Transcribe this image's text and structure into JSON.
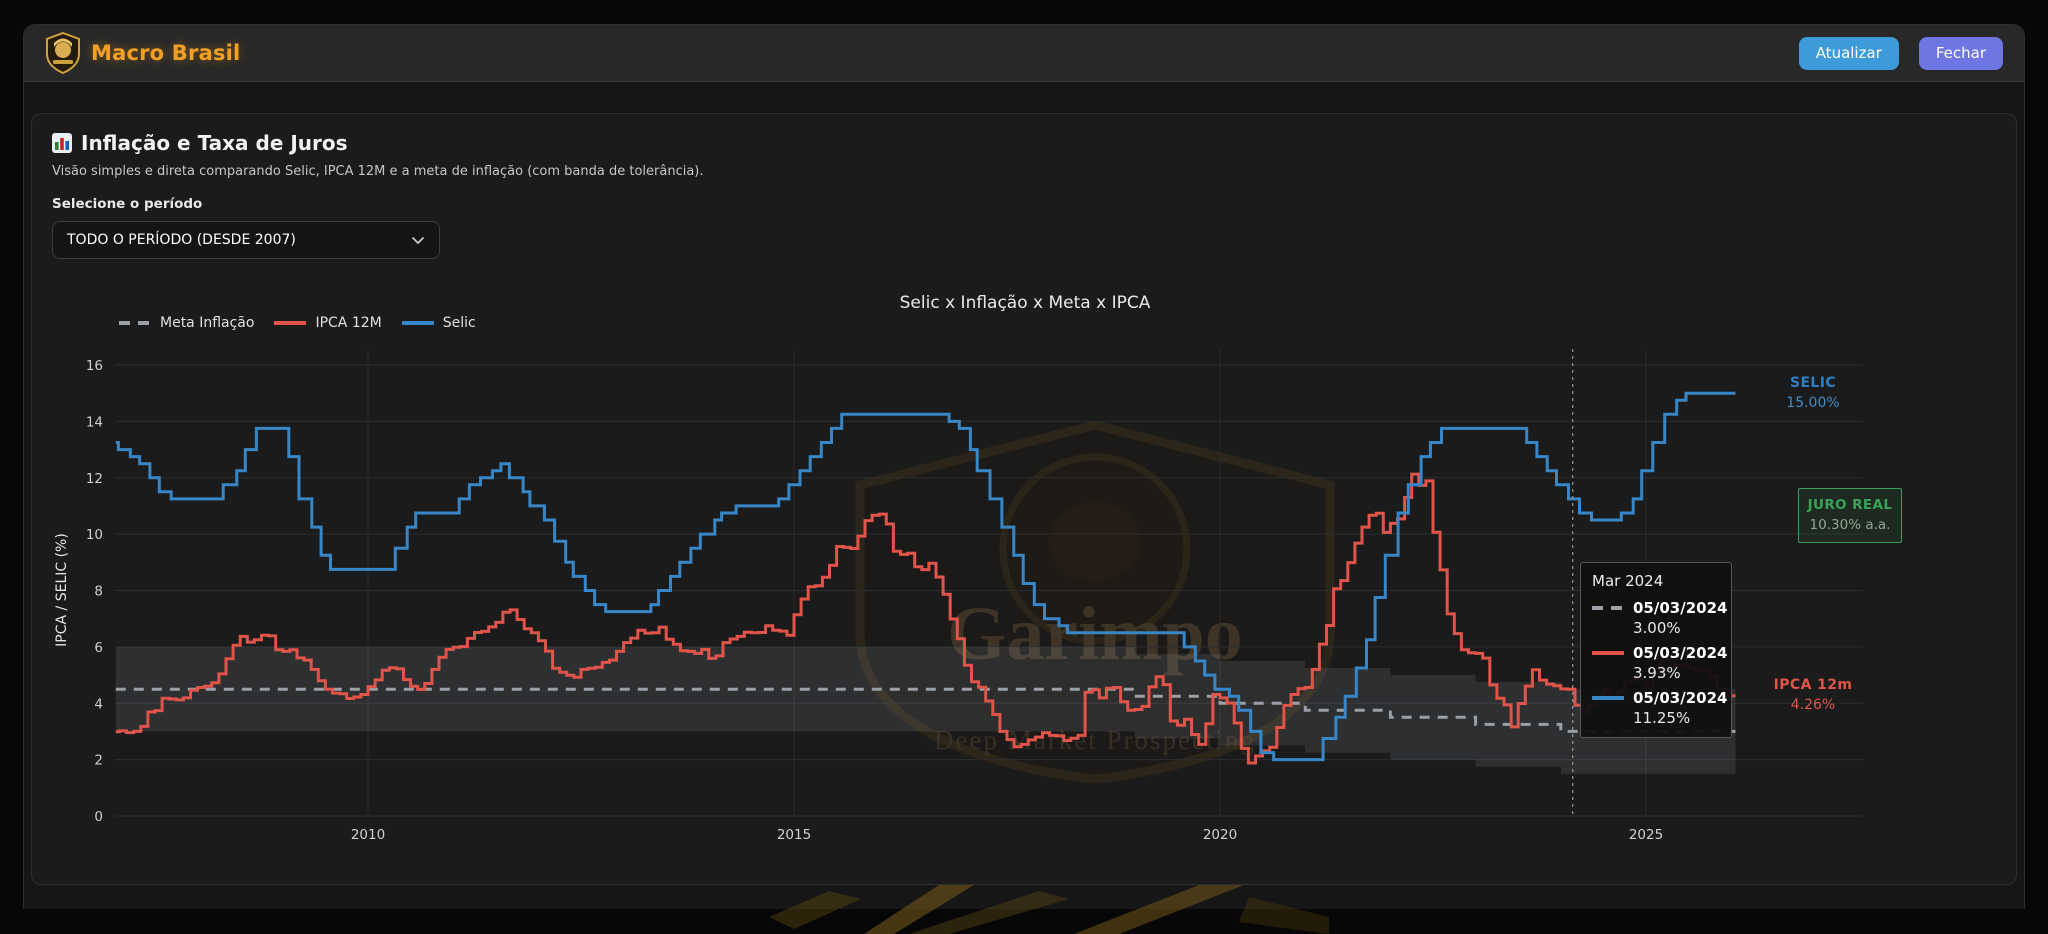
{
  "header": {
    "brand": "Macro Brasil",
    "refresh_label": "Atualizar",
    "close_label": "Fechar",
    "colors": {
      "brand": "#f2a024",
      "refresh_button": "#3d9bd9",
      "close_button": "#6d76e3"
    }
  },
  "card": {
    "title": "Inflação e Taxa de Juros",
    "subtitle": "Visão simples e direta comparando Selic, IPCA 12M e a meta de inflação (com banda de tolerância).",
    "period_label": "Selecione o período",
    "period_value": "TODO O PERÍODO (DESDE 2007)"
  },
  "annotations": {
    "selic": {
      "label": "SELIC",
      "value": "15.00%",
      "color": "#3787c8"
    },
    "juro_real": {
      "label": "JURO REAL",
      "value": "10.30% a.a.",
      "color": "#3fa35c"
    },
    "ipca": {
      "label": "IPCA 12m",
      "value": "4.26%",
      "color": "#e0544a"
    }
  },
  "tooltip": {
    "title": "Mar 2024",
    "rows": [
      {
        "series": "meta",
        "date": "05/03/2024",
        "value": "3.00%"
      },
      {
        "series": "ipca",
        "date": "05/03/2024",
        "value": "3.93%"
      },
      {
        "series": "selic",
        "date": "05/03/2024",
        "value": "11.25%"
      }
    ]
  },
  "watermark": {
    "name": "Garimpo",
    "tagline": "Deep Market Prospecting"
  },
  "chart_data": {
    "type": "line",
    "title": "Selic x Inflação x Meta x IPCA",
    "ylabel": "IPCA / SELIC (%)",
    "y_ticks": [
      0,
      2,
      4,
      6,
      8,
      10,
      12,
      14,
      16
    ],
    "x_ticks": [
      2010,
      2015,
      2020,
      2025
    ],
    "x_range": [
      2007.04,
      2026.05
    ],
    "ylim": [
      0,
      16
    ],
    "grid": true,
    "legend_position": "top-left",
    "crosshair_x": 2024.14,
    "legend": [
      {
        "name": "Meta Inflação",
        "color": "#9aa0a6",
        "style": "dashed"
      },
      {
        "name": "IPCA 12M",
        "color": "#e0544a",
        "style": "solid"
      },
      {
        "name": "Selic",
        "color": "#3787c8",
        "style": "solid"
      }
    ],
    "band_tolerance": 1.5,
    "band_fill": "rgba(190,196,206,0.12)",
    "meta_steps": [
      [
        2007.04,
        4.5
      ],
      [
        2019,
        4.25
      ],
      [
        2020,
        4.0
      ],
      [
        2021,
        3.75
      ],
      [
        2022,
        3.5
      ],
      [
        2023,
        3.25
      ],
      [
        2024,
        3.0
      ],
      [
        2026.05,
        3.0
      ]
    ],
    "selic_steps": [
      [
        2007.04,
        13.25
      ],
      [
        2007.07,
        13.0
      ],
      [
        2007.21,
        12.75
      ],
      [
        2007.32,
        12.5
      ],
      [
        2007.44,
        12.0
      ],
      [
        2007.55,
        11.5
      ],
      [
        2007.69,
        11.25
      ],
      [
        2008.3,
        11.75
      ],
      [
        2008.46,
        12.25
      ],
      [
        2008.56,
        13.0
      ],
      [
        2008.69,
        13.75
      ],
      [
        2009.07,
        12.75
      ],
      [
        2009.19,
        11.25
      ],
      [
        2009.34,
        10.25
      ],
      [
        2009.45,
        9.25
      ],
      [
        2009.56,
        8.75
      ],
      [
        2010.32,
        9.5
      ],
      [
        2010.46,
        10.25
      ],
      [
        2010.56,
        10.75
      ],
      [
        2011.07,
        11.25
      ],
      [
        2011.19,
        11.75
      ],
      [
        2011.32,
        12.0
      ],
      [
        2011.46,
        12.25
      ],
      [
        2011.56,
        12.5
      ],
      [
        2011.66,
        12.0
      ],
      [
        2011.82,
        11.5
      ],
      [
        2011.9,
        11.0
      ],
      [
        2012.07,
        10.5
      ],
      [
        2012.19,
        9.75
      ],
      [
        2012.32,
        9.0
      ],
      [
        2012.41,
        8.5
      ],
      [
        2012.55,
        8.0
      ],
      [
        2012.66,
        7.5
      ],
      [
        2012.79,
        7.25
      ],
      [
        2013.32,
        7.5
      ],
      [
        2013.41,
        8.0
      ],
      [
        2013.55,
        8.5
      ],
      [
        2013.66,
        9.0
      ],
      [
        2013.79,
        9.5
      ],
      [
        2013.9,
        10.0
      ],
      [
        2014.07,
        10.5
      ],
      [
        2014.15,
        10.75
      ],
      [
        2014.32,
        11.0
      ],
      [
        2014.82,
        11.25
      ],
      [
        2014.94,
        11.75
      ],
      [
        2015.07,
        12.25
      ],
      [
        2015.19,
        12.75
      ],
      [
        2015.32,
        13.25
      ],
      [
        2015.44,
        13.75
      ],
      [
        2015.56,
        14.25
      ],
      [
        2016.82,
        14.0
      ],
      [
        2016.94,
        13.75
      ],
      [
        2017.07,
        13.0
      ],
      [
        2017.15,
        12.25
      ],
      [
        2017.3,
        11.25
      ],
      [
        2017.44,
        10.25
      ],
      [
        2017.58,
        9.25
      ],
      [
        2017.69,
        8.25
      ],
      [
        2017.82,
        7.5
      ],
      [
        2017.94,
        7.0
      ],
      [
        2018.11,
        6.75
      ],
      [
        2018.21,
        6.5
      ],
      [
        2019.58,
        6.0
      ],
      [
        2019.71,
        5.5
      ],
      [
        2019.82,
        5.0
      ],
      [
        2019.94,
        4.5
      ],
      [
        2020.11,
        4.25
      ],
      [
        2020.22,
        3.75
      ],
      [
        2020.36,
        3.0
      ],
      [
        2020.48,
        2.25
      ],
      [
        2020.63,
        2.0
      ],
      [
        2021.21,
        2.75
      ],
      [
        2021.36,
        3.5
      ],
      [
        2021.47,
        4.25
      ],
      [
        2021.6,
        5.25
      ],
      [
        2021.72,
        6.25
      ],
      [
        2021.82,
        7.75
      ],
      [
        2021.94,
        9.25
      ],
      [
        2022.09,
        10.75
      ],
      [
        2022.21,
        11.75
      ],
      [
        2022.36,
        12.75
      ],
      [
        2022.47,
        13.25
      ],
      [
        2022.6,
        13.75
      ],
      [
        2023.6,
        13.25
      ],
      [
        2023.72,
        12.75
      ],
      [
        2023.84,
        12.25
      ],
      [
        2023.95,
        11.75
      ],
      [
        2024.09,
        11.25
      ],
      [
        2024.22,
        10.75
      ],
      [
        2024.36,
        10.5
      ],
      [
        2024.71,
        10.75
      ],
      [
        2024.85,
        11.25
      ],
      [
        2024.95,
        12.25
      ],
      [
        2025.08,
        13.25
      ],
      [
        2025.22,
        14.25
      ],
      [
        2025.36,
        14.75
      ],
      [
        2025.47,
        15.0
      ],
      [
        2026.05,
        15.0
      ]
    ],
    "ipca_monthly_start": 2007.04,
    "ipca_monthly": [
      2.99,
      3.02,
      2.96,
      3.0,
      3.18,
      3.69,
      3.74,
      4.18,
      4.15,
      4.12,
      4.19,
      4.46,
      4.56,
      4.61,
      4.73,
      5.04,
      5.58,
      6.06,
      6.37,
      6.17,
      6.25,
      6.41,
      6.39,
      5.9,
      5.84,
      5.9,
      5.61,
      5.53,
      5.2,
      4.8,
      4.5,
      4.36,
      4.34,
      4.17,
      4.22,
      4.31,
      4.59,
      4.83,
      5.17,
      5.26,
      5.22,
      4.84,
      4.6,
      4.49,
      4.7,
      5.2,
      5.63,
      5.91,
      5.99,
      6.01,
      6.3,
      6.51,
      6.55,
      6.71,
      6.87,
      7.23,
      7.31,
      6.97,
      6.64,
      6.5,
      6.22,
      5.85,
      5.24,
      5.1,
      4.99,
      4.92,
      5.2,
      5.24,
      5.28,
      5.45,
      5.53,
      5.84,
      6.15,
      6.31,
      6.59,
      6.49,
      6.5,
      6.7,
      6.27,
      6.09,
      5.86,
      5.84,
      5.77,
      5.91,
      5.59,
      5.68,
      6.15,
      6.28,
      6.37,
      6.52,
      6.5,
      6.51,
      6.75,
      6.59,
      6.56,
      6.41,
      7.14,
      7.7,
      8.13,
      8.17,
      8.47,
      8.89,
      9.56,
      9.53,
      9.49,
      9.93,
      10.48,
      10.67,
      10.71,
      10.36,
      9.39,
      9.28,
      9.32,
      8.84,
      8.74,
      8.97,
      8.48,
      7.87,
      6.99,
      6.29,
      5.35,
      4.76,
      4.57,
      4.08,
      3.6,
      3.0,
      2.71,
      2.46,
      2.54,
      2.7,
      2.8,
      2.95,
      2.86,
      2.84,
      2.68,
      2.76,
      2.86,
      4.39,
      4.48,
      4.19,
      4.53,
      4.56,
      4.05,
      3.75,
      3.78,
      3.89,
      4.58,
      4.94,
      4.66,
      3.37,
      3.22,
      3.43,
      2.89,
      2.54,
      3.27,
      4.31,
      4.19,
      4.01,
      3.3,
      2.4,
      1.88,
      2.13,
      2.31,
      2.44,
      3.14,
      3.92,
      4.31,
      4.52,
      4.56,
      5.2,
      6.1,
      6.76,
      8.06,
      8.35,
      8.99,
      9.68,
      10.25,
      10.67,
      10.74,
      10.06,
      10.38,
      10.54,
      11.3,
      12.13,
      11.73,
      11.89,
      10.07,
      8.73,
      7.17,
      6.47,
      5.9,
      5.79,
      5.77,
      5.6,
      4.65,
      4.18,
      3.94,
      3.16,
      3.99,
      4.61,
      5.19,
      4.82,
      4.68,
      4.62,
      4.51,
      4.5,
      3.93,
      3.69,
      3.93,
      4.23,
      4.5,
      4.24,
      4.42,
      4.76,
      4.87,
      4.83,
      4.56,
      5.06,
      5.48,
      5.53,
      5.32,
      5.35,
      5.23,
      5.13,
      5.17,
      4.94,
      4.5,
      4.26
    ]
  }
}
